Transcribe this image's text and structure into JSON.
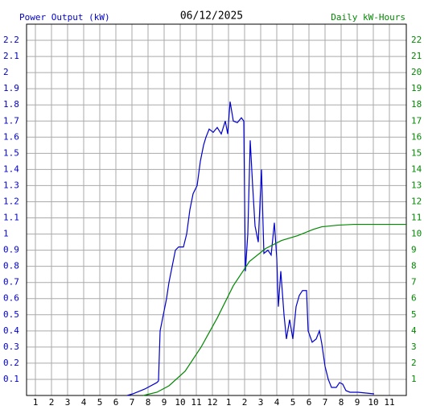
{
  "chart_data": {
    "type": "line",
    "title": "06/12/2025",
    "ylabel": "Power Output (kW)",
    "y2label": "Daily kW-Hours",
    "xlim": [
      0.45,
      24.05
    ],
    "ylim": [
      0,
      2.3
    ],
    "y2lim": [
      0,
      23
    ],
    "grid": true,
    "xticks": [
      1,
      2,
      3,
      4,
      5,
      6,
      7,
      8,
      9,
      10,
      11,
      12,
      {
        "value": 13,
        "label": "1"
      },
      {
        "value": 14,
        "label": "2"
      },
      {
        "value": 15,
        "label": "3"
      },
      {
        "value": 16,
        "label": "4"
      },
      {
        "value": 17,
        "label": "5"
      },
      {
        "value": 18,
        "label": "6"
      },
      {
        "value": 19,
        "label": "7"
      },
      {
        "value": 20,
        "label": "8"
      },
      {
        "value": 21,
        "label": "9"
      },
      {
        "value": 22,
        "label": "10"
      },
      {
        "value": 23,
        "label": "11"
      }
    ],
    "yticks": [
      0.1,
      0.2,
      0.3,
      0.4,
      0.5,
      0.6,
      0.7,
      0.8,
      0.9,
      1.0,
      1.1,
      1.2,
      1.3,
      1.4,
      1.5,
      1.6,
      1.7,
      1.8,
      1.9,
      2.0,
      2.1,
      2.2
    ],
    "y2ticks": [
      1,
      2,
      3,
      4,
      5,
      6,
      7,
      8,
      9,
      10,
      11,
      12,
      13,
      14,
      15,
      16,
      17,
      18,
      19,
      20,
      21,
      22
    ],
    "series": [
      {
        "color": "#0000cc",
        "x": [
          6.7,
          7.05,
          7.8,
          8.55,
          8.65,
          8.75,
          8.95,
          9.15,
          9.3,
          9.5,
          9.7,
          9.9,
          10.2,
          10.4,
          10.6,
          10.8,
          11.05,
          11.25,
          11.45,
          11.6,
          11.8,
          12.05,
          12.3,
          12.55,
          12.8,
          12.95,
          13.1,
          13.3,
          13.55,
          13.8,
          13.95,
          14.05,
          14.2,
          14.35,
          14.5,
          14.65,
          14.85,
          15.05,
          15.2,
          15.45,
          15.65,
          15.85,
          16.0,
          16.1,
          16.25,
          16.45,
          16.6,
          16.8,
          17.0,
          17.2,
          17.4,
          17.6,
          17.85,
          17.95,
          18.2,
          18.45,
          18.65,
          18.8,
          19.0,
          19.2,
          19.4,
          19.7,
          19.9,
          20.1,
          20.3,
          20.55,
          21.05,
          22.05
        ],
        "values": [
          0,
          0.01,
          0.04,
          0.08,
          0.09,
          0.4,
          0.5,
          0.6,
          0.7,
          0.8,
          0.9,
          0.92,
          0.92,
          1.0,
          1.15,
          1.25,
          1.3,
          1.45,
          1.55,
          1.6,
          1.65,
          1.63,
          1.66,
          1.62,
          1.7,
          1.62,
          1.82,
          1.7,
          1.69,
          1.72,
          1.7,
          0.77,
          1.0,
          1.58,
          1.3,
          1.05,
          0.95,
          1.4,
          0.88,
          0.9,
          0.87,
          1.07,
          0.85,
          0.55,
          0.77,
          0.5,
          0.35,
          0.47,
          0.35,
          0.55,
          0.62,
          0.65,
          0.65,
          0.4,
          0.33,
          0.35,
          0.4,
          0.32,
          0.18,
          0.1,
          0.05,
          0.05,
          0.08,
          0.07,
          0.03,
          0.02,
          0.02,
          0.01
        ]
      },
      {
        "color": "#008800",
        "axis": "y2",
        "x": [
          7.7,
          8.55,
          9.3,
          10.3,
          11.3,
          12.3,
          13.3,
          14.3,
          15.3,
          16.3,
          17.3,
          18.3,
          18.8,
          19.8,
          20.8,
          24.05
        ],
        "values": [
          0,
          0.2,
          0.6,
          1.5,
          3.0,
          4.8,
          6.8,
          8.3,
          9.1,
          9.6,
          9.9,
          10.3,
          10.45,
          10.55,
          10.6,
          10.6
        ]
      }
    ]
  }
}
